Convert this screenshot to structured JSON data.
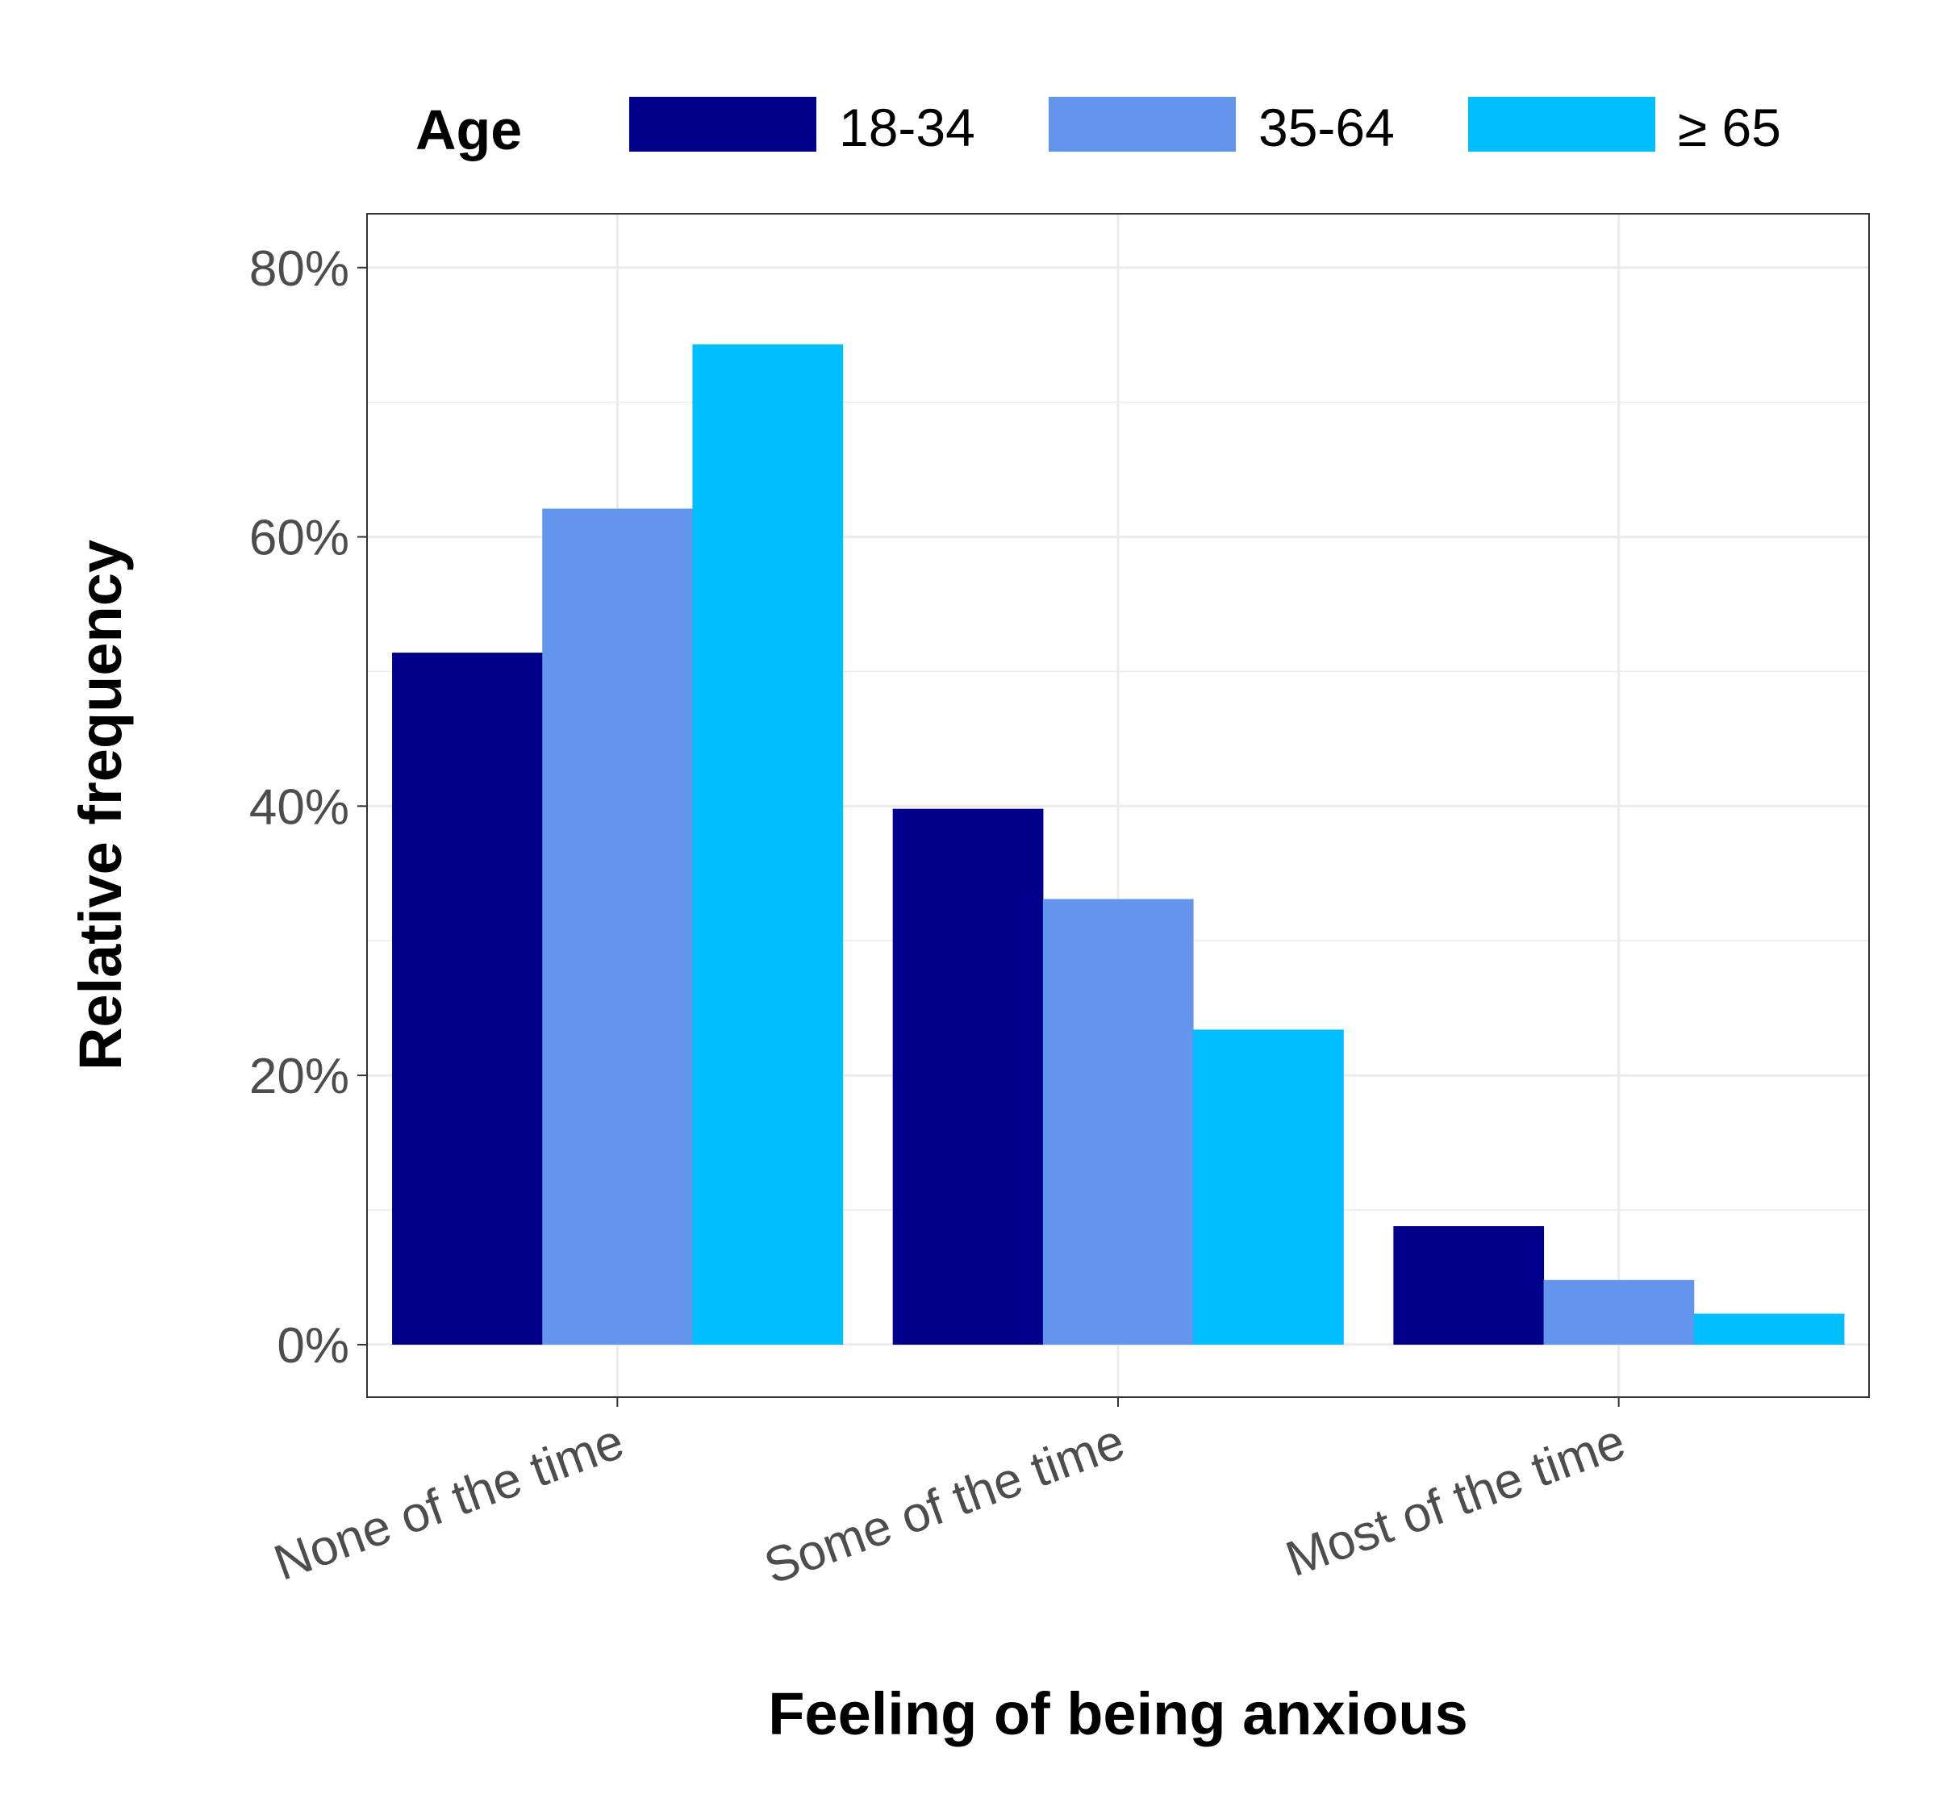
{
  "chart_data": {
    "type": "bar",
    "xlabel": "Feeling of being anxious",
    "ylabel": "Relative frequency",
    "categories": [
      "None of the time",
      "Some of the time",
      "Most of the time"
    ],
    "series": [
      {
        "name": "18-34",
        "color": "#00008B",
        "values": [
          51.4,
          39.8,
          8.8
        ]
      },
      {
        "name": "35-64",
        "color": "#6495ED",
        "values": [
          62.1,
          33.1,
          4.8
        ]
      },
      {
        "name": "≥ 65",
        "color": "#00BFFF",
        "values": [
          74.3,
          23.4,
          2.3
        ]
      }
    ],
    "ylim": [
      -3.9,
      84
    ],
    "yticks": [
      0,
      20,
      40,
      60,
      80
    ],
    "ytick_labels": [
      "0%",
      "20%",
      "40%",
      "60%",
      "80%"
    ],
    "grid": true,
    "legend": {
      "title": "Age",
      "position": "top"
    }
  }
}
